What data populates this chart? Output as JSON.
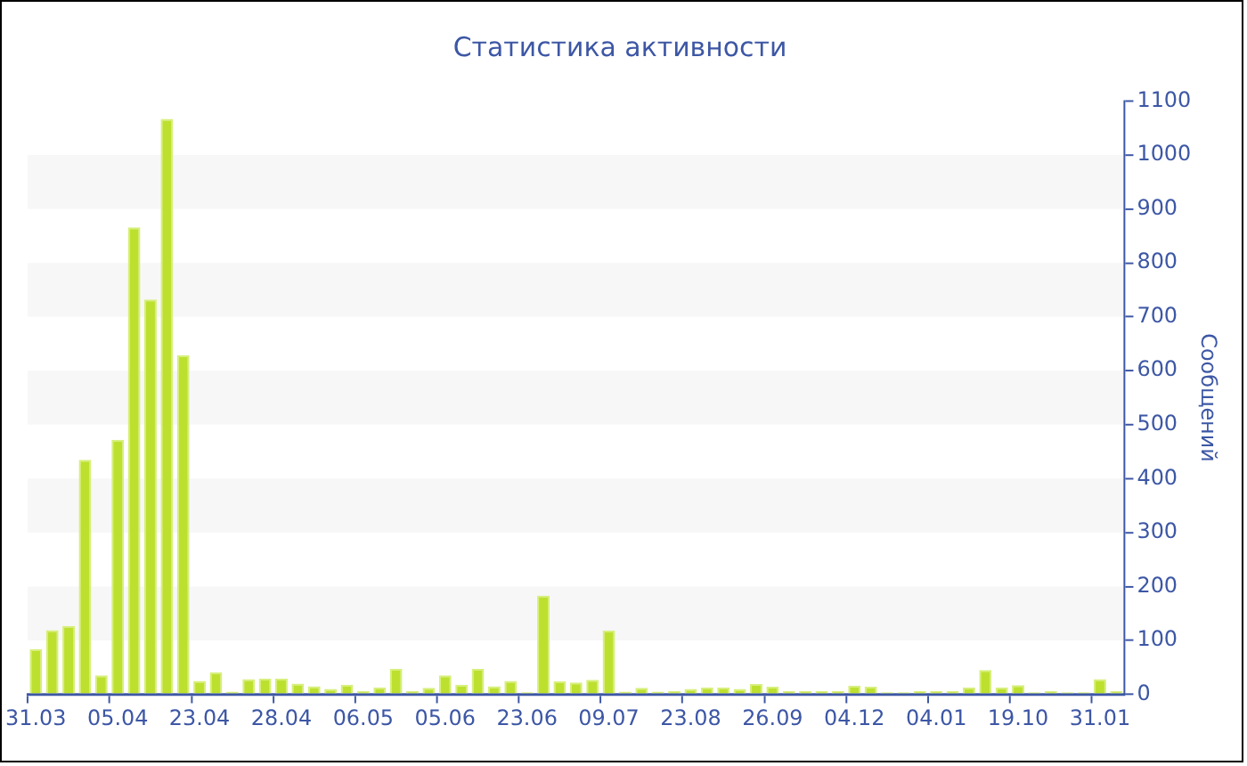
{
  "chart_data": {
    "type": "bar",
    "title": "Статистика активности",
    "ylabel": "Сообщений",
    "categories": [
      "31.03",
      null,
      null,
      null,
      null,
      "05.04",
      null,
      null,
      null,
      null,
      "23.04",
      null,
      null,
      null,
      null,
      "28.04",
      null,
      null,
      null,
      null,
      "06.05",
      null,
      null,
      null,
      null,
      "05.06",
      null,
      null,
      null,
      null,
      "23.06",
      null,
      null,
      null,
      null,
      "09.07",
      null,
      null,
      null,
      null,
      "23.08",
      null,
      null,
      null,
      null,
      "26.09",
      null,
      null,
      null,
      null,
      "04.12",
      null,
      null,
      null,
      null,
      "04.01",
      null,
      null,
      null,
      null,
      "19.10",
      null,
      null,
      null,
      null,
      "31.01",
      null
    ],
    "values": [
      84,
      119,
      127,
      435,
      35,
      472,
      866,
      732,
      1067,
      629,
      25,
      41,
      5,
      28,
      29,
      29,
      20,
      15,
      10,
      18,
      6,
      13,
      47,
      6,
      12,
      35,
      18,
      47,
      15,
      25,
      4,
      183,
      24,
      22,
      27,
      118,
      5,
      12,
      5,
      6,
      10,
      13,
      13,
      10,
      19,
      14,
      6,
      6,
      6,
      6,
      16,
      14,
      4,
      4,
      6,
      6,
      6,
      13,
      45,
      13,
      17,
      4,
      6,
      4,
      4,
      28,
      6
    ],
    "color": "#bde02f",
    "ylim": [
      0,
      1100
    ],
    "yticks": [
      0,
      100,
      200,
      300,
      400,
      500,
      600,
      700,
      800,
      900,
      1000,
      1100
    ],
    "bands": [
      {
        "axis": "y",
        "from": 100,
        "to": 200,
        "color": "#f7f7f7"
      },
      {
        "axis": "y",
        "from": 300,
        "to": 400,
        "color": "#f7f7f7"
      },
      {
        "axis": "y",
        "from": 500,
        "to": 600,
        "color": "#f7f7f7"
      },
      {
        "axis": "y",
        "from": 700,
        "to": 800,
        "color": "#f7f7f7"
      },
      {
        "axis": "y",
        "from": 900,
        "to": 1000,
        "color": "#f7f7f7"
      }
    ]
  }
}
